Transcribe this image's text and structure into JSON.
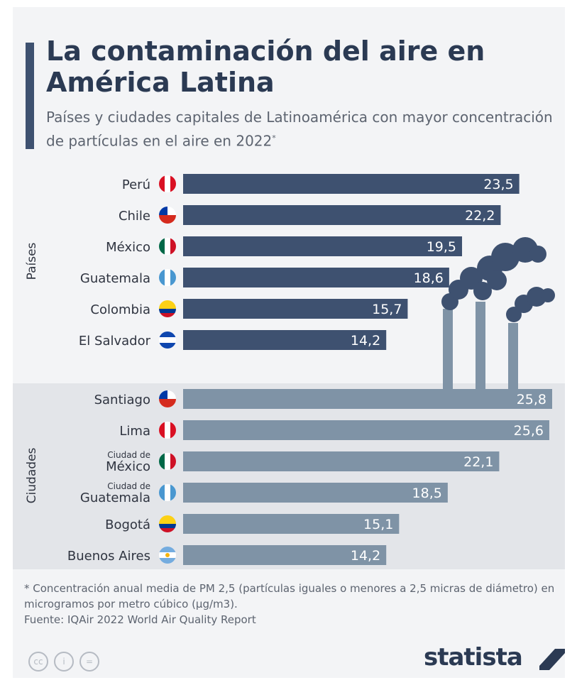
{
  "header": {
    "title": "La contaminación del aire en América Latina",
    "subtitle": "Países y ciudades capitales de Latinoamérica con mayor concentración de partículas en el aire en 2022",
    "subtitle_mark": "*"
  },
  "footer": {
    "footnote": "* Concentración anual media de PM 2,5 (partículas iguales o menores a 2,5 micras de diámetro) en microgramos por metro cúbico (µg/m3).",
    "source": "Fuente: IQAir 2022 World Air Quality Report",
    "logo_text": "statista",
    "license_icons": [
      "cc-icon",
      "attribution-icon",
      "no-derivatives-icon"
    ],
    "license_glyphs": [
      "cc",
      "i",
      "="
    ]
  },
  "colors": {
    "countries_bar": "#3e5170",
    "cities_bar": "#7f93a6",
    "title_accent": "#3e5170"
  },
  "chart_data": {
    "type": "bar",
    "orientation": "horizontal",
    "groups": [
      {
        "name": "Países",
        "categories": [
          "Perú",
          "Chile",
          "México",
          "Guatemala",
          "Colombia",
          "El Salvador"
        ],
        "values": [
          23.5,
          22.2,
          19.5,
          18.6,
          15.7,
          14.2
        ],
        "value_labels": [
          "23,5",
          "22,2",
          "19,5",
          "18,6",
          "15,7",
          "14,2"
        ],
        "flags": [
          "peru-flag-icon",
          "chile-flag-icon",
          "mexico-flag-icon",
          "guatemala-flag-icon",
          "colombia-flag-icon",
          "el-salvador-flag-icon"
        ]
      },
      {
        "name": "Ciudades",
        "categories": [
          "Santiago",
          "Lima",
          "Ciudad de México",
          "Ciudad de Guatemala",
          "Bogotá",
          "Buenos Aires"
        ],
        "values": [
          25.8,
          25.6,
          22.1,
          18.5,
          15.1,
          14.2
        ],
        "value_labels": [
          "25,8",
          "25,6",
          "22,1",
          "18,5",
          "15,1",
          "14,2"
        ],
        "flags": [
          "chile-flag-icon",
          "peru-flag-icon",
          "mexico-flag-icon",
          "guatemala-flag-icon",
          "colombia-flag-icon",
          "argentina-flag-icon"
        ]
      }
    ],
    "xlim": [
      0,
      25.8
    ],
    "grid": false,
    "legend": "none"
  }
}
